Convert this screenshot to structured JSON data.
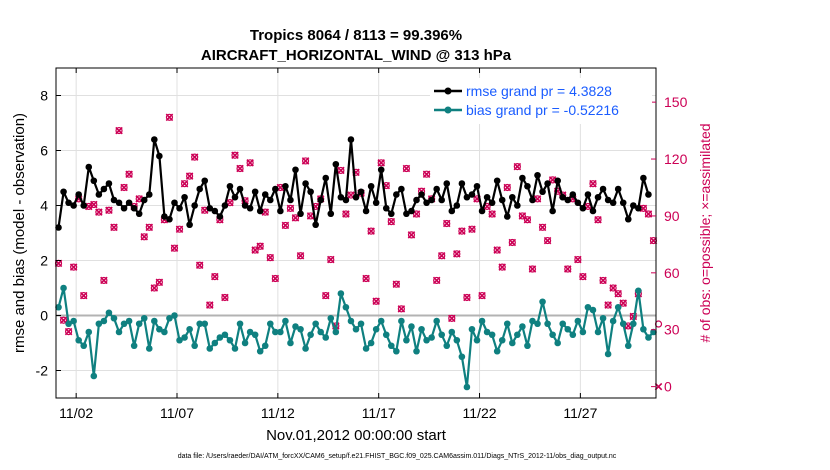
{
  "chart_data": {
    "type": "line",
    "title_line1": "Tropics 8064 / 8113 = 99.396%",
    "title_line2": "AIRCRAFT_HORIZONTAL_WIND @ 313 hPa",
    "xlabel": "Nov.01,2012 00:00:00 start",
    "ylabel": "rmse and bias (model - observation)",
    "y2label": "# of obs: o=possible; ×=assimilated",
    "footnote": "data file: /Users/raeder/DAI/ATM_forcXX/CAM6_setup/f.e21.FHIST_BGC.f09_025.CAM6assim.011/Diags_NTrS_2012-11/obs_diag_output.nc",
    "xlim": [
      0.5,
      30.25
    ],
    "ylim": [
      -3,
      9
    ],
    "y2lim": [
      -6,
      168
    ],
    "x_ticks": [
      1.5,
      6.5,
      11.5,
      16.5,
      21.5,
      26.5
    ],
    "x_tick_labels": [
      "11/02",
      "11/07",
      "11/12",
      "11/17",
      "11/22",
      "11/27"
    ],
    "y_ticks": [
      -2,
      0,
      2,
      4,
      6,
      8
    ],
    "y_tick_labels": [
      "-2",
      "0",
      "2",
      "4",
      "6",
      "8"
    ],
    "y2_ticks": [
      0,
      30,
      60,
      90,
      120,
      150
    ],
    "y2_tick_labels": [
      "0",
      "30",
      "60",
      "90",
      "120",
      "150"
    ],
    "legend_location": "top-right",
    "colors": {
      "rmse": "#000000",
      "bias": "#0f8080",
      "obs": "#cc0055",
      "legend_text": "#1a5cff",
      "zero_line": "#b3b3b3",
      "grid": "#e0e0e0"
    },
    "series": [
      {
        "name": "rmse grand pr = 4.3828",
        "color": "#000000",
        "x_start": 0.625,
        "x_step": 0.25,
        "values": [
          3.2,
          4.5,
          4.1,
          4.0,
          4.4,
          4.0,
          5.4,
          4.9,
          4.4,
          4.6,
          4.8,
          4.2,
          4.1,
          3.9,
          4.1,
          3.9,
          3.7,
          4.2,
          4.4,
          6.4,
          5.8,
          3.6,
          3.5,
          4.1,
          3.9,
          4.3,
          3.3,
          4.0,
          4.6,
          4.9,
          3.9,
          3.8,
          3.6,
          4.0,
          4.7,
          4.3,
          4.6,
          4.0,
          3.9,
          4.5,
          3.8,
          4.4,
          4.2,
          4.6,
          3.8,
          4.7,
          4.2,
          5.3,
          3.7,
          4.8,
          4.5,
          3.3,
          4.2,
          5.0,
          3.7,
          5.5,
          4.3,
          4.2,
          6.4,
          4.3,
          4.5,
          3.8,
          4.7,
          4.1,
          5.3,
          3.9,
          3.7,
          4.4,
          4.6,
          3.7,
          3.8,
          4.2,
          4.4,
          4.1,
          4.2,
          4.6,
          4.2,
          4.8,
          3.8,
          4.0,
          4.8,
          4.3,
          4.4,
          4.7,
          3.8,
          4.3,
          4.1,
          4.9,
          4.2,
          3.6,
          4.3,
          4.0,
          5.0,
          4.7,
          4.2,
          5.1,
          4.5,
          4.8,
          3.8,
          4.9,
          4.3,
          4.2,
          4.4,
          4.1,
          3.9,
          4.4,
          3.8,
          4.3,
          4.6,
          4.2,
          4.1,
          4.6,
          4.1,
          3.5,
          4.0,
          3.9,
          5.0,
          4.4
        ]
      },
      {
        "name": "bias grand pr = -0.52216",
        "color": "#0f8080",
        "x_start": 0.625,
        "x_step": 0.25,
        "values": [
          0.3,
          1.0,
          -0.3,
          -0.2,
          -0.9,
          -1.1,
          -0.6,
          -2.2,
          -0.3,
          -0.2,
          0.1,
          -0.1,
          -0.6,
          -0.3,
          -0.2,
          -1.1,
          -0.3,
          -0.1,
          -1.2,
          -0.2,
          -0.5,
          -0.6,
          -0.1,
          0.0,
          -0.9,
          -0.8,
          -0.5,
          -1.1,
          -0.3,
          -0.3,
          -1.2,
          -1.0,
          -0.8,
          -0.7,
          -0.9,
          -1.2,
          -0.3,
          -1.0,
          -0.6,
          -0.7,
          -1.3,
          -1.1,
          -0.3,
          -0.6,
          -0.6,
          -0.2,
          -1.0,
          -0.4,
          -0.5,
          -1.2,
          -0.7,
          -0.3,
          -0.6,
          -0.8,
          -0.1,
          -0.6,
          0.8,
          0.3,
          -0.2,
          -0.5,
          -0.3,
          -1.2,
          -1.0,
          -0.5,
          -0.2,
          -0.7,
          -1.1,
          -1.3,
          -0.2,
          -0.9,
          -0.4,
          -1.3,
          -0.5,
          -0.9,
          -0.8,
          -0.2,
          -0.7,
          -1.1,
          -0.6,
          -0.9,
          -1.5,
          -2.6,
          -0.5,
          -0.9,
          -0.2,
          -0.6,
          -0.7,
          -1.3,
          -0.9,
          -0.3,
          -1.0,
          -0.7,
          -0.4,
          -1.1,
          -0.2,
          -0.3,
          0.5,
          -0.3,
          -0.7,
          -1.0,
          -0.3,
          -0.5,
          -0.7,
          -0.2,
          -0.6,
          0.3,
          0.2,
          -0.6,
          -0.1,
          -1.4,
          -0.2,
          0.3,
          -0.3,
          -1.1,
          -0.3,
          0.9,
          -0.5,
          -0.8,
          -0.6
        ]
      },
      {
        "name": "obs possible",
        "color": "#cc0055",
        "marker": "o",
        "axis": "right",
        "x_start": 0.625,
        "x_step": 0.25,
        "values": [
          65,
          35,
          29,
          63,
          99,
          48,
          95,
          96,
          92,
          56,
          93,
          84,
          135,
          105,
          112,
          95,
          99,
          79,
          84,
          52,
          55,
          88,
          142,
          73,
          83,
          107,
          111,
          121,
          64,
          93,
          43,
          58,
          88,
          47,
          97,
          122,
          115,
          98,
          118,
          72,
          74,
          92,
          68,
          57,
          105,
          85,
          94,
          89,
          69,
          119,
          90,
          95,
          99,
          48,
          67,
          32,
          114,
          91,
          101,
          113,
          102,
          57,
          82,
          45,
          118,
          106,
          87,
          54,
          41,
          115,
          80,
          91,
          103,
          112,
          99,
          56,
          69,
          86,
          36,
          70,
          82,
          47,
          83,
          99,
          48,
          95,
          91,
          72,
          63,
          105,
          76,
          116,
          90,
          88,
          62,
          99,
          84,
          77,
          109,
          103,
          101,
          62,
          99,
          67,
          58,
          95,
          107,
          88,
          56,
          43,
          52,
          49,
          44,
          32,
          37,
          49,
          94,
          91,
          77,
          33
        ]
      },
      {
        "name": "obs assimilated",
        "color": "#cc0055",
        "marker": "x",
        "axis": "right",
        "x_start": 0.625,
        "x_step": 0.25,
        "values": [
          65,
          35,
          29,
          63,
          99,
          48,
          95,
          96,
          92,
          56,
          93,
          84,
          135,
          105,
          112,
          95,
          99,
          79,
          84,
          52,
          55,
          88,
          142,
          73,
          83,
          107,
          111,
          121,
          64,
          93,
          43,
          58,
          88,
          47,
          97,
          122,
          115,
          98,
          118,
          72,
          74,
          92,
          68,
          57,
          105,
          85,
          94,
          89,
          69,
          119,
          90,
          95,
          99,
          48,
          67,
          32,
          114,
          91,
          101,
          113,
          102,
          57,
          82,
          45,
          118,
          106,
          87,
          54,
          41,
          115,
          80,
          91,
          103,
          112,
          99,
          56,
          69,
          86,
          36,
          70,
          82,
          47,
          83,
          99,
          48,
          95,
          91,
          72,
          63,
          105,
          76,
          116,
          90,
          88,
          62,
          99,
          84,
          77,
          109,
          103,
          101,
          62,
          99,
          67,
          58,
          95,
          107,
          88,
          56,
          43,
          52,
          49,
          44,
          32,
          37,
          49,
          94,
          91,
          77,
          0
        ]
      }
    ]
  }
}
